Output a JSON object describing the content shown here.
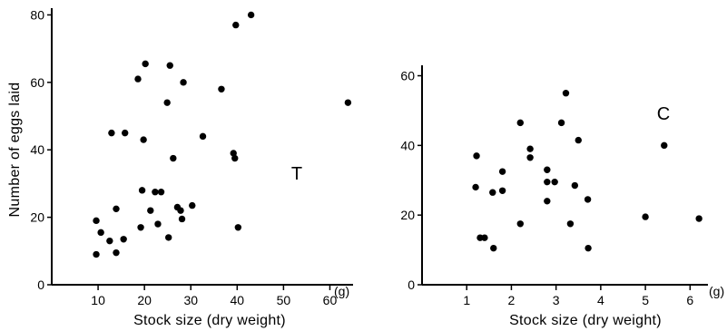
{
  "chart_data": [
    {
      "type": "scatter",
      "panel_label": "T",
      "xlabel": "Stock size (dry weight)",
      "ylabel": "Number of eggs laid",
      "x_unit": "(g)",
      "xlim": [
        0,
        65
      ],
      "ylim": [
        0,
        82
      ],
      "x_ticks": [
        10,
        20,
        30,
        40,
        50,
        60
      ],
      "y_ticks": [
        0,
        20,
        40,
        60,
        80
      ],
      "grid": false,
      "points": [
        [
          9.6,
          19
        ],
        [
          9.6,
          9
        ],
        [
          10.6,
          15.5
        ],
        [
          12.5,
          13
        ],
        [
          12.9,
          45
        ],
        [
          13.9,
          22.5
        ],
        [
          13.9,
          9.5
        ],
        [
          15.5,
          13.5
        ],
        [
          15.8,
          45
        ],
        [
          18.6,
          61
        ],
        [
          19.2,
          17
        ],
        [
          19.5,
          28
        ],
        [
          19.8,
          43
        ],
        [
          20.2,
          65.5
        ],
        [
          21.3,
          22
        ],
        [
          22.3,
          27.5
        ],
        [
          22.9,
          18
        ],
        [
          23.6,
          27.5
        ],
        [
          24.9,
          54
        ],
        [
          25.2,
          14
        ],
        [
          25.5,
          65
        ],
        [
          26.2,
          37.5
        ],
        [
          27.1,
          23
        ],
        [
          27.8,
          22
        ],
        [
          28.1,
          19.5
        ],
        [
          28.4,
          60
        ],
        [
          30.3,
          23.5
        ],
        [
          32.6,
          44
        ],
        [
          36.6,
          58
        ],
        [
          39.2,
          39
        ],
        [
          39.5,
          37.5
        ],
        [
          39.7,
          77
        ],
        [
          40.2,
          17
        ],
        [
          43.0,
          80
        ],
        [
          63.9,
          54
        ]
      ]
    },
    {
      "type": "scatter",
      "panel_label": "C",
      "xlabel": "Stock size (dry weight)",
      "ylabel": "",
      "x_unit": "(g)",
      "xlim": [
        0,
        6.4
      ],
      "ylim": [
        0,
        63
      ],
      "x_ticks": [
        1,
        2,
        3,
        4,
        5,
        6
      ],
      "y_ticks": [
        0,
        20,
        40,
        60
      ],
      "grid": false,
      "points": [
        [
          1.2,
          28
        ],
        [
          1.22,
          37
        ],
        [
          1.3,
          13.5
        ],
        [
          1.4,
          13.5
        ],
        [
          1.58,
          26.5
        ],
        [
          1.6,
          10.5
        ],
        [
          1.8,
          32.5
        ],
        [
          1.8,
          27
        ],
        [
          2.2,
          46.5
        ],
        [
          2.2,
          17.5
        ],
        [
          2.42,
          39
        ],
        [
          2.42,
          36.5
        ],
        [
          2.8,
          33
        ],
        [
          2.8,
          24
        ],
        [
          2.8,
          29.5
        ],
        [
          2.97,
          29.5
        ],
        [
          3.12,
          46.5
        ],
        [
          3.22,
          55
        ],
        [
          3.32,
          17.5
        ],
        [
          3.42,
          28.5
        ],
        [
          3.5,
          41.5
        ],
        [
          3.71,
          24.5
        ],
        [
          3.72,
          10.5
        ],
        [
          5.0,
          19.5
        ],
        [
          5.42,
          40
        ],
        [
          6.2,
          19
        ]
      ]
    }
  ]
}
